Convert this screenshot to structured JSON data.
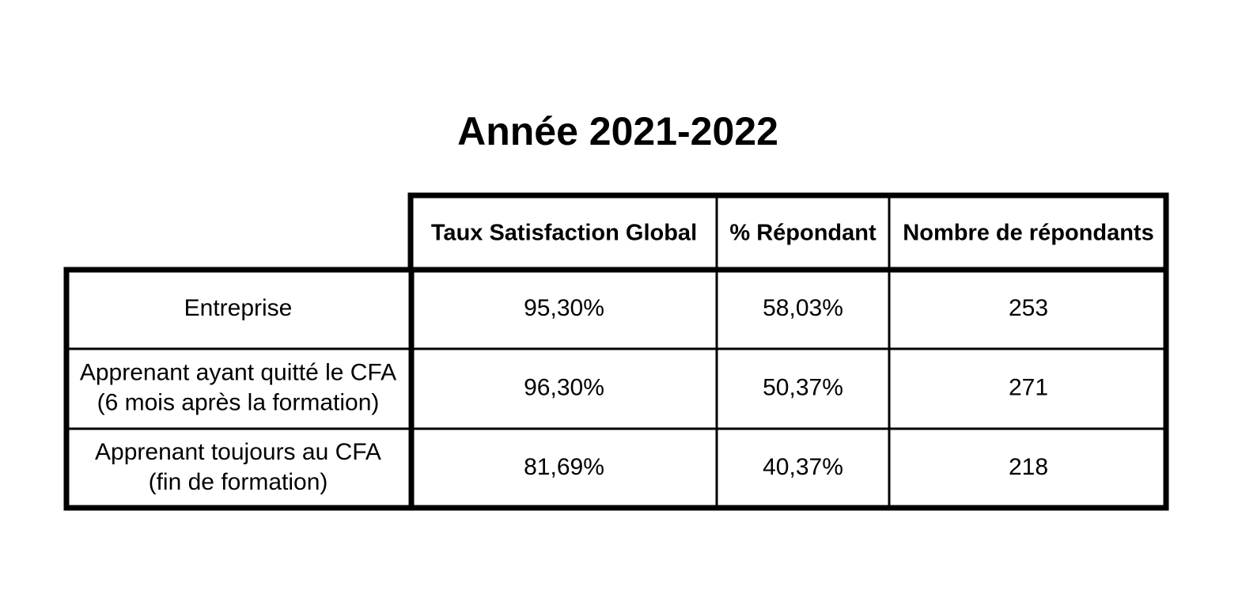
{
  "title": "Année 2021-2022",
  "table": {
    "header": [
      "Taux Satisfaction Global",
      "% Répondant",
      "Nombre de répondants"
    ],
    "rows": [
      {
        "label": [
          "Entreprise"
        ],
        "cells": [
          "95,30%",
          "58,03%",
          "253"
        ]
      },
      {
        "label": [
          "Apprenant ayant quitté le CFA",
          "(6 mois après la formation)"
        ],
        "cells": [
          "96,30%",
          "50,37%",
          "271"
        ]
      },
      {
        "label": [
          "Apprenant toujours au CFA",
          "(fin de formation)"
        ],
        "cells": [
          "81,69%",
          "40,37%",
          "218"
        ]
      }
    ]
  }
}
